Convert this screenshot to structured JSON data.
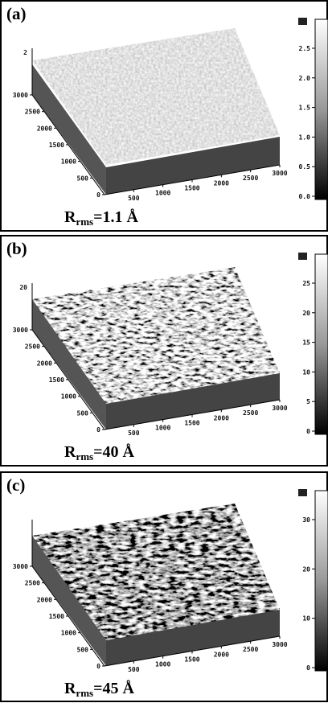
{
  "panels": [
    {
      "label": "(a)",
      "z_label": "2",
      "y_ticks": [
        "3000",
        "2500",
        "2000",
        "1500",
        "1000",
        "500",
        "0"
      ],
      "x_ticks": [
        "500",
        "1000",
        "1500",
        "2000",
        "2500",
        "3000"
      ],
      "colorbar_ticks": [
        "2.5",
        "2.0",
        "1.5",
        "1.0",
        "0.5",
        "0.0"
      ],
      "rms": {
        "symbol": "R",
        "subscript": "rms",
        "value": "=1.1 Å"
      }
    },
    {
      "label": "(b)",
      "z_label": "20",
      "y_ticks": [
        "3000",
        "2500",
        "2000",
        "1500",
        "1000",
        "500",
        "0"
      ],
      "x_ticks": [
        "500",
        "1000",
        "1500",
        "2000",
        "2500",
        "3000"
      ],
      "colorbar_ticks": [
        "25",
        "20",
        "15",
        "10",
        "5",
        "0"
      ],
      "rms": {
        "symbol": "R",
        "subscript": "rms",
        "value": "=40 Å"
      }
    },
    {
      "label": "(c)",
      "y_ticks": [
        "3000",
        "2500",
        "2000",
        "1500",
        "1000",
        "500",
        "0"
      ],
      "x_ticks": [
        "500",
        "1000",
        "1500",
        "2000",
        "2500",
        "3000"
      ],
      "colorbar_ticks": [
        "30",
        "20",
        "10",
        "0"
      ],
      "rms": {
        "symbol": "R",
        "subscript": "rms",
        "value": "=45 Å"
      }
    }
  ]
}
